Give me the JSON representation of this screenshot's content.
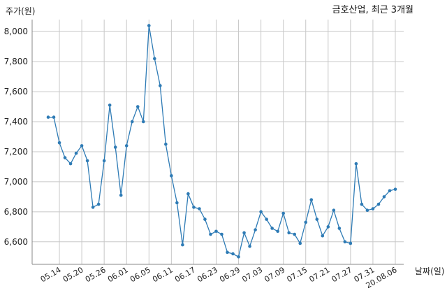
{
  "chart_data": {
    "type": "line",
    "title": "금호산업, 최근 3개월",
    "ylabel": "주가(원)",
    "xlabel": "날짜(일)",
    "ylim": [
      6450,
      8080
    ],
    "yticks": [
      6600,
      6800,
      7000,
      7200,
      7400,
      7600,
      7800,
      8000
    ],
    "ytick_labels": [
      "6,600",
      "6,800",
      "7,000",
      "7,200",
      "7,400",
      "7,600",
      "7,800",
      "8,000"
    ],
    "xtick_labels": [
      "05.14",
      "05.20",
      "05.26",
      "06.01",
      "06.05",
      "06.11",
      "06.17",
      "06.23",
      "06.29",
      "07.03",
      "07.09",
      "07.15",
      "07.21",
      "07.27",
      "07.31",
      "20.08.06"
    ],
    "xtick_indices": [
      2,
      6,
      10,
      14,
      18,
      22,
      26,
      30,
      34,
      38,
      42,
      46,
      50,
      54,
      58,
      62
    ],
    "grid": true,
    "line_color": "#2e7bb5",
    "series": [
      {
        "values": [
          7430,
          7430,
          7260,
          7160,
          7120,
          7190,
          7240,
          7140,
          6830,
          6850,
          7140,
          7510,
          7230,
          6910,
          7240,
          7400,
          7500,
          7400,
          8040,
          7820,
          7640,
          7250,
          7040,
          6860,
          6580,
          6920,
          6830,
          6820,
          6750,
          6650,
          6670,
          6650,
          6530,
          6520,
          6500,
          6660,
          6570,
          6680,
          6800,
          6750,
          6690,
          6670,
          6790,
          6660,
          6650,
          6590,
          6730,
          6880,
          6750,
          6640,
          6700,
          6810,
          6690,
          6600,
          6590,
          7120,
          6850,
          6810,
          6820,
          6850,
          6900,
          6940,
          6950
        ]
      }
    ]
  }
}
